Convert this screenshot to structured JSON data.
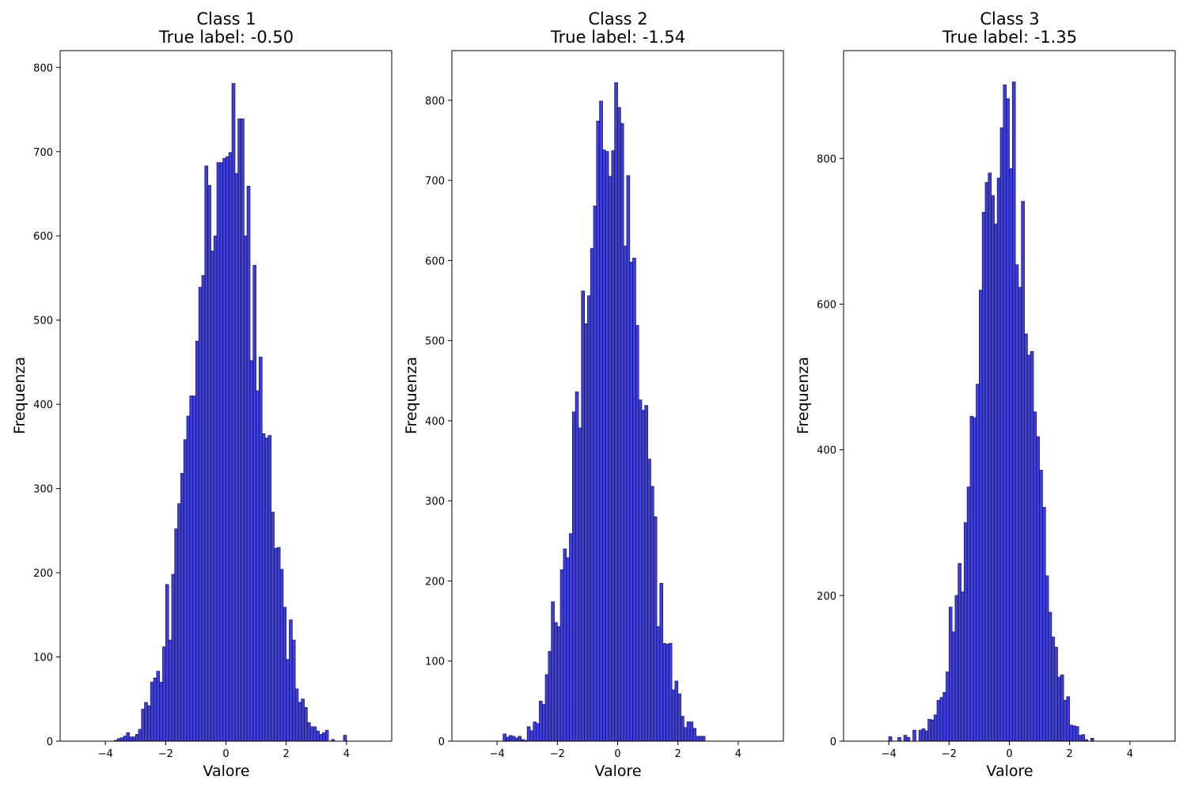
{
  "figure": {
    "bar_color": "#0000cc",
    "bar_edge_color": "#1a1a66",
    "bar_opacity": 0.75
  },
  "chart_data": [
    {
      "type": "bar",
      "title_line1": "Class 1",
      "title_line2": "True label: -0.50",
      "xlabel": "Valore",
      "ylabel": "Frequenza",
      "xlim": [
        -5.5,
        5.5
      ],
      "ylim": [
        0,
        820
      ],
      "xticks": [
        -4,
        -2,
        0,
        2,
        4
      ],
      "xtick_labels": [
        "−4",
        "−2",
        "0",
        "2",
        "4"
      ],
      "yticks": [
        0,
        100,
        200,
        300,
        400,
        500,
        600,
        700,
        800
      ],
      "ytick_labels": [
        "0",
        "100",
        "200",
        "300",
        "400",
        "500",
        "600",
        "700",
        "800"
      ],
      "bin_start": -5.0,
      "bin_width": 0.1,
      "values": [
        0,
        0,
        0,
        0,
        0,
        0,
        0,
        0,
        0,
        0,
        0,
        0,
        0,
        1,
        3,
        4,
        6,
        10,
        5,
        5,
        8,
        14,
        38,
        46,
        42,
        70,
        75,
        83,
        70,
        112,
        186,
        120,
        198,
        252,
        282,
        318,
        358,
        386,
        410,
        410,
        475,
        539,
        553,
        683,
        660,
        582,
        600,
        687,
        687,
        692,
        694,
        699,
        781,
        674,
        739,
        739,
        600,
        659,
        452,
        565,
        416,
        456,
        365,
        360,
        363,
        272,
        229,
        230,
        204,
        159,
        97,
        144,
        120,
        62,
        46,
        50,
        40,
        22,
        17,
        17,
        12,
        8,
        10,
        13,
        0,
        2,
        0,
        0,
        0,
        7,
        0,
        0,
        0,
        0,
        0,
        0,
        0,
        0,
        0,
        0
      ]
    },
    {
      "type": "bar",
      "title_line1": "Class 2",
      "title_line2": "True label: -1.54",
      "xlabel": "Valore",
      "ylabel": "Frequenza",
      "xlim": [
        -5.5,
        5.5
      ],
      "ylim": [
        0,
        862
      ],
      "xticks": [
        -4,
        -2,
        0,
        2,
        4
      ],
      "xtick_labels": [
        "−4",
        "−2",
        "0",
        "2",
        "4"
      ],
      "yticks": [
        0,
        100,
        200,
        300,
        400,
        500,
        600,
        700,
        800
      ],
      "ytick_labels": [
        "0",
        "100",
        "200",
        "300",
        "400",
        "500",
        "600",
        "700",
        "800"
      ],
      "bin_start": -5.0,
      "bin_width": 0.1,
      "values": [
        0,
        0,
        0,
        0,
        0,
        0,
        0,
        0,
        0,
        0,
        0,
        0,
        9,
        5,
        7,
        6,
        4,
        6,
        2,
        1,
        18,
        13,
        24,
        22,
        50,
        46,
        83,
        112,
        174,
        148,
        143,
        214,
        240,
        229,
        259,
        411,
        436,
        391,
        562,
        521,
        556,
        615,
        668,
        774,
        799,
        738,
        736,
        705,
        737,
        822,
        791,
        771,
        618,
        706,
        598,
        603,
        519,
        426,
        413,
        419,
        352,
        318,
        280,
        143,
        197,
        122,
        121,
        122,
        64,
        75,
        59,
        31,
        17,
        24,
        24,
        16,
        6,
        6,
        6,
        0,
        0,
        0,
        0,
        0,
        0,
        0,
        0,
        0,
        0,
        0,
        0,
        0,
        0,
        0,
        0,
        0,
        0,
        0,
        0,
        0
      ]
    },
    {
      "type": "bar",
      "title_line1": "Class 3",
      "title_line2": "True label: -1.35",
      "xlabel": "Valore",
      "ylabel": "Frequenza",
      "xlim": [
        -5.5,
        5.5
      ],
      "ylim": [
        0,
        948
      ],
      "xticks": [
        -4,
        -2,
        0,
        2,
        4
      ],
      "xtick_labels": [
        "−4",
        "−2",
        "0",
        "2",
        "4"
      ],
      "yticks": [
        0,
        200,
        400,
        600,
        800
      ],
      "ytick_labels": [
        "0",
        "200",
        "400",
        "600",
        "800"
      ],
      "bin_start": -5.0,
      "bin_width": 0.1,
      "values": [
        0,
        0,
        0,
        0,
        0,
        0,
        0,
        0,
        0,
        0,
        6,
        0,
        0,
        5,
        0,
        8,
        5,
        0,
        15,
        0,
        15,
        17,
        14,
        30,
        29,
        36,
        56,
        60,
        67,
        95,
        184,
        150,
        200,
        244,
        205,
        300,
        349,
        446,
        444,
        490,
        619,
        726,
        767,
        780,
        749,
        710,
        773,
        842,
        901,
        882,
        786,
        905,
        654,
        623,
        741,
        559,
        530,
        535,
        452,
        418,
        372,
        321,
        227,
        177,
        143,
        129,
        88,
        91,
        56,
        61,
        22,
        21,
        20,
        8,
        9,
        2,
        0,
        4,
        0,
        0,
        0,
        0,
        0,
        0,
        0,
        0,
        0,
        0,
        0,
        0,
        0,
        0,
        0,
        0,
        0,
        0,
        0,
        0,
        0,
        0
      ]
    }
  ]
}
